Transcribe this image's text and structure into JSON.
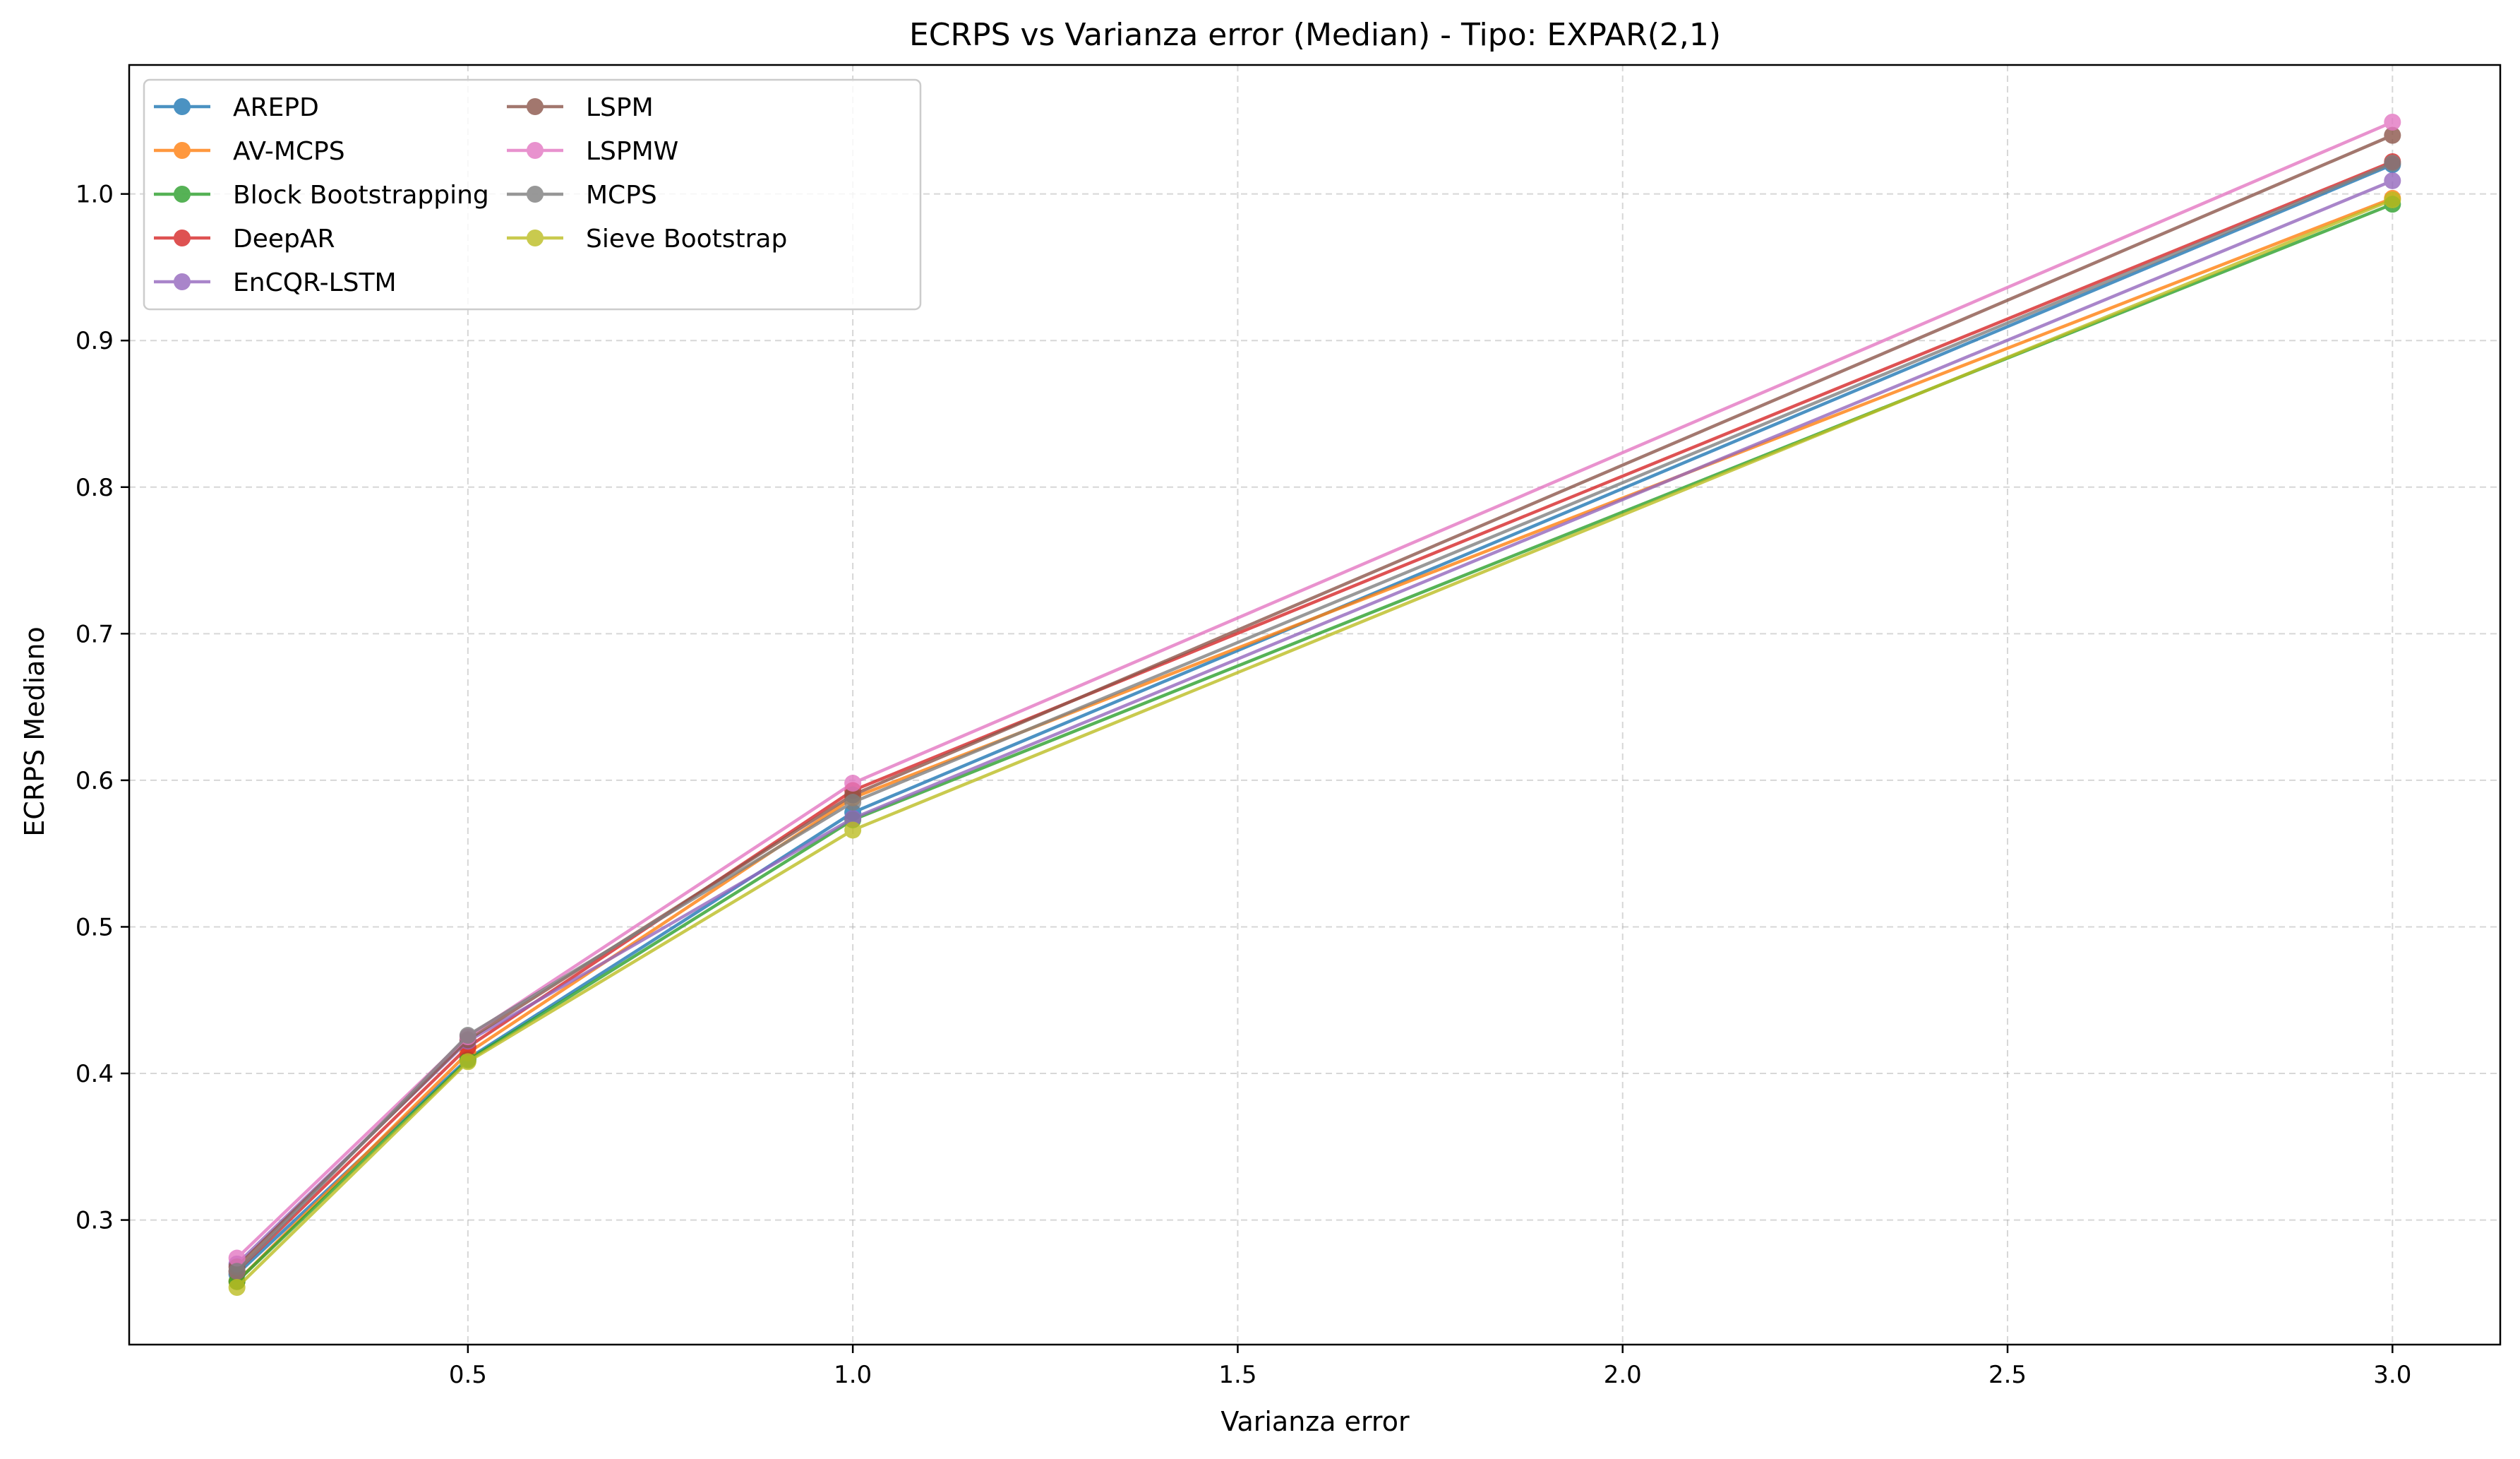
{
  "chart_data": {
    "type": "line",
    "title": "ECRPS vs Varianza error (Median) - Tipo: EXPAR(2,1)",
    "xlabel": "Varianza error",
    "ylabel": "ECRPS Mediano",
    "xlim": [
      0.06,
      3.14
    ],
    "ylim": [
      0.215,
      1.088
    ],
    "xticks": [
      0.5,
      1.0,
      1.5,
      2.0,
      2.5,
      3.0
    ],
    "xtick_labels": [
      "0.5",
      "1.0",
      "1.5",
      "2.0",
      "2.5",
      "3.0"
    ],
    "yticks": [
      0.3,
      0.4,
      0.5,
      0.6,
      0.7,
      0.8,
      0.9,
      1.0
    ],
    "ytick_labels": [
      "0.3",
      "0.4",
      "0.5",
      "0.6",
      "0.7",
      "0.8",
      "0.9",
      "1.0"
    ],
    "grid": true,
    "legend_position": "top-left",
    "x": [
      0.2,
      0.5,
      1.0,
      3.0
    ],
    "series": [
      {
        "name": "AREPD",
        "color": "#1f77b4",
        "values": [
          0.263,
          0.41,
          0.578,
          1.02
        ]
      },
      {
        "name": "AV-MCPS",
        "color": "#ff7f0e",
        "values": [
          0.258,
          0.414,
          0.588,
          0.997
        ]
      },
      {
        "name": "Block Bootstrapping",
        "color": "#2ca02c",
        "values": [
          0.258,
          0.409,
          0.573,
          0.993
        ]
      },
      {
        "name": "DeepAR",
        "color": "#d62728",
        "values": [
          0.265,
          0.418,
          0.593,
          1.022
        ]
      },
      {
        "name": "EnCQR-LSTM",
        "color": "#9467bd",
        "values": [
          0.27,
          0.422,
          0.574,
          1.009
        ]
      },
      {
        "name": "LSPM",
        "color": "#8c564b",
        "values": [
          0.268,
          0.423,
          0.59,
          1.04
        ]
      },
      {
        "name": "LSPMW",
        "color": "#e377c2",
        "values": [
          0.274,
          0.425,
          0.598,
          1.049
        ]
      },
      {
        "name": "MCPS",
        "color": "#7f7f7f",
        "values": [
          0.265,
          0.426,
          0.585,
          1.021
        ]
      },
      {
        "name": "Sieve Bootstrap",
        "color": "#bcbd22",
        "values": [
          0.254,
          0.408,
          0.566,
          0.996
        ]
      }
    ]
  }
}
